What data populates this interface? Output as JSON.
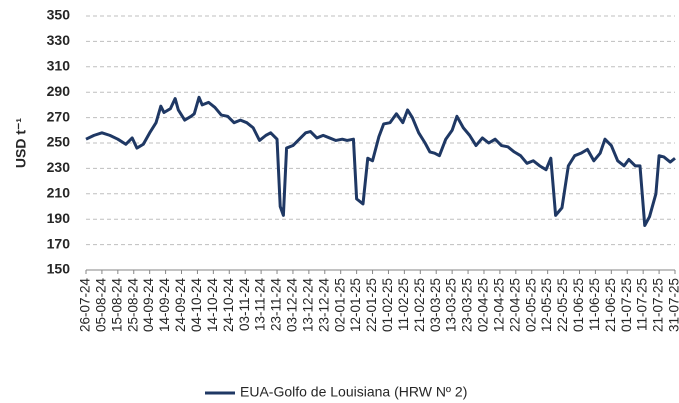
{
  "chart_data": {
    "type": "line",
    "y_label": "USD t⁻¹",
    "x": [
      "26-07-24",
      "31-07-24",
      "05-08-24",
      "10-08-24",
      "15-08-24",
      "20-08-24",
      "24-08-24",
      "27-08-24",
      "31-08-24",
      "04-09-24",
      "08-09-24",
      "11-09-24",
      "13-09-24",
      "17-09-24",
      "20-09-24",
      "22-09-24",
      "26-09-24",
      "30-09-24",
      "02-10-24",
      "05-10-24",
      "07-10-24",
      "11-10-24",
      "15-10-24",
      "19-10-24",
      "23-10-24",
      "27-10-24",
      "31-10-24",
      "04-11-24",
      "08-11-24",
      "12-11-24",
      "16-11-24",
      "19-11-24",
      "23-11-24",
      "25-11-24",
      "27-11-24",
      "29-11-24",
      "03-12-24",
      "07-12-24",
      "11-12-24",
      "14-12-24",
      "18-12-24",
      "22-12-24",
      "26-12-24",
      "30-12-24",
      "03-01-25",
      "06-01-25",
      "10-01-25",
      "12-01-25",
      "16-01-25",
      "19-01-25",
      "22-01-25",
      "26-01-25",
      "29-01-25",
      "02-02-25",
      "06-02-25",
      "10-02-25",
      "13-02-25",
      "16-02-25",
      "20-02-25",
      "24-02-25",
      "27-02-25",
      "02-03-25",
      "05-03-25",
      "09-03-25",
      "13-03-25",
      "16-03-25",
      "20-03-25",
      "24-03-25",
      "28-03-25",
      "01-04-25",
      "05-04-25",
      "09-04-25",
      "13-04-25",
      "17-04-25",
      "21-04-25",
      "25-04-25",
      "29-04-25",
      "03-05-25",
      "07-05-25",
      "11-05-25",
      "14-05-25",
      "17-05-25",
      "21-05-25",
      "25-05-25",
      "29-05-25",
      "02-06-25",
      "06-06-25",
      "10-06-25",
      "14-06-25",
      "17-06-25",
      "21-06-25",
      "25-06-25",
      "29-06-25",
      "02-07-25",
      "06-07-25",
      "09-07-25",
      "12-07-25",
      "15-07-25",
      "19-07-25",
      "21-07-25",
      "24-07-25",
      "28-07-25",
      "31-07-25"
    ],
    "series": [
      {
        "name": "EUA-Golfo de Louisiana (HRW Nº 2)",
        "color": "#1f3864",
        "values": [
          253,
          256,
          258,
          256,
          253,
          249,
          254,
          246,
          249,
          258,
          266,
          279,
          274,
          277,
          285,
          276,
          268,
          271,
          273,
          286,
          280,
          282,
          278,
          272,
          271,
          266,
          268,
          266,
          262,
          252,
          256,
          258,
          253,
          200,
          193,
          246,
          248,
          253,
          258,
          259,
          254,
          256,
          254,
          252,
          253,
          252,
          253,
          206,
          202,
          238,
          236,
          255,
          265,
          266,
          273,
          266,
          276,
          270,
          258,
          250,
          243,
          242,
          240,
          253,
          260,
          271,
          262,
          256,
          248,
          254,
          250,
          253,
          248,
          247,
          243,
          240,
          234,
          236,
          232,
          229,
          238,
          193,
          199,
          232,
          240,
          242,
          245,
          236,
          242,
          253,
          248,
          236,
          232,
          237,
          232,
          232,
          185,
          192,
          210,
          240,
          239,
          235,
          238
        ]
      }
    ],
    "xlim": [
      "26-07-24",
      "31-07-25"
    ],
    "xticks": [
      "26-07-24",
      "05-08-24",
      "15-08-24",
      "25-08-24",
      "04-09-24",
      "14-09-24",
      "24-09-24",
      "04-10-24",
      "14-10-24",
      "24-10-24",
      "03-11-24",
      "13-11-24",
      "23-11-24",
      "03-12-24",
      "13-12-24",
      "23-12-24",
      "02-01-25",
      "12-01-25",
      "22-01-25",
      "01-02-25",
      "11-02-25",
      "21-02-25",
      "03-03-25",
      "13-03-25",
      "23-03-25",
      "02-04-25",
      "12-04-25",
      "22-04-25",
      "02-05-25",
      "12-05-25",
      "22-05-25",
      "01-06-25",
      "11-06-25",
      "21-06-25",
      "01-07-25",
      "11-07-25",
      "21-07-25",
      "31-07-25"
    ],
    "ylim": [
      150,
      350
    ],
    "yticks": [
      150,
      170,
      190,
      210,
      230,
      250,
      270,
      290,
      310,
      330,
      350
    ],
    "grid": true,
    "legend": "bottom"
  }
}
